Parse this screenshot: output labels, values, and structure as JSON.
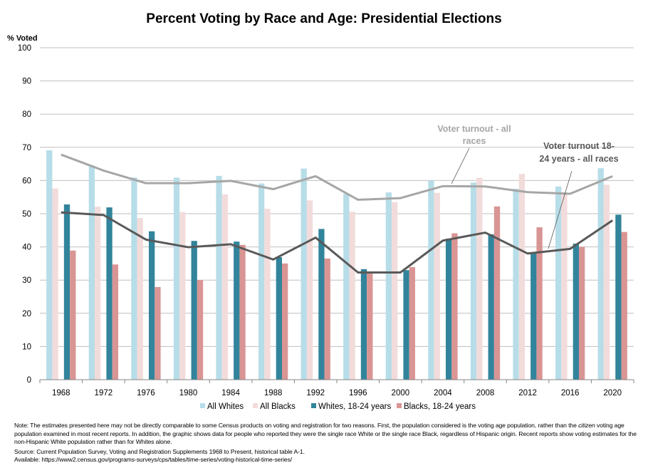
{
  "chart_data": {
    "type": "bar",
    "title": "Percent Voting by Race and Age:  Presidential Elections",
    "ylabel": "% Voted",
    "xlabel": "",
    "ylim": [
      0,
      100
    ],
    "yticks": [
      0,
      10,
      20,
      30,
      40,
      50,
      60,
      70,
      80,
      90,
      100
    ],
    "grid": true,
    "legend_position": "bottom",
    "categories": [
      "1968",
      "1972",
      "1976",
      "1980",
      "1984",
      "1988",
      "1992",
      "1996",
      "2000",
      "2004",
      "2008",
      "2012",
      "2016",
      "2020"
    ],
    "series": [
      {
        "name": "All Whites",
        "kind": "bar",
        "color": "#b7dde8",
        "values": [
          69.1,
          64.5,
          60.9,
          60.9,
          61.4,
          59.1,
          63.6,
          56.0,
          56.4,
          60.0,
          59.4,
          57.5,
          58.2,
          63.7
        ]
      },
      {
        "name": "All Blacks",
        "kind": "bar",
        "color": "#f2dcdb",
        "values": [
          57.6,
          52.1,
          48.7,
          50.5,
          55.8,
          51.5,
          54.0,
          50.6,
          53.5,
          56.3,
          60.8,
          62.0,
          55.9,
          58.7
        ]
      },
      {
        "name": "Whites, 18-24 years",
        "kind": "bar",
        "color": "#31849b",
        "values": [
          52.8,
          51.9,
          44.7,
          41.8,
          41.6,
          36.9,
          45.4,
          33.3,
          33.0,
          42.5,
          43.8,
          38.0,
          41.0,
          49.7
        ]
      },
      {
        "name": "Blacks, 18-24 years",
        "kind": "bar",
        "color": "#d99594",
        "values": [
          38.9,
          34.7,
          27.9,
          30.0,
          40.6,
          35.0,
          36.5,
          32.4,
          33.9,
          44.1,
          52.2,
          45.9,
          40.0,
          44.5
        ]
      },
      {
        "name": "Voter turnout - all races",
        "kind": "line",
        "color": "#a6a6a6",
        "values": [
          67.8,
          63.0,
          59.2,
          59.2,
          59.9,
          57.4,
          61.3,
          54.2,
          54.7,
          58.3,
          58.2,
          56.5,
          56.0,
          61.3
        ]
      },
      {
        "name": "Voter turnout 18-24 years - all races",
        "kind": "line",
        "color": "#595959",
        "values": [
          50.4,
          49.6,
          42.2,
          39.9,
          40.8,
          36.2,
          42.8,
          32.3,
          32.3,
          41.9,
          44.3,
          38.0,
          39.4,
          48.0
        ]
      }
    ],
    "annotations": [
      {
        "text_lines": [
          "Voter turnout - all",
          "races"
        ],
        "series": "Voter turnout - all races"
      },
      {
        "text_lines": [
          "Voter turnout 18-",
          "24 years - all races"
        ],
        "series": "Voter turnout 18-24 years - all races"
      }
    ]
  },
  "notes": {
    "note_prefix": "Note: The estimates presented here may not be directly comparable to some Census products on voting and registration for two reasons. First, the population considered is the voting age population, rather than the ",
    "note_italic": "citizen",
    "note_suffix": " voting age population examined in most recent reports. In addition, the graphic shows data for people who reported they were the single race White or the single race Black, regardless of Hispanic origin. Recent reports show voting estimates for the non-Hispanic White population rather than for Whites alone.",
    "source": "Source: Current Population Survey, Voting and  Registration Supplements 1968 to Present, historical table A-1.",
    "available": "Available: https://www2.census.gov/programs-surveys/cps/tables/time-series/voting-historical-time-series/"
  }
}
